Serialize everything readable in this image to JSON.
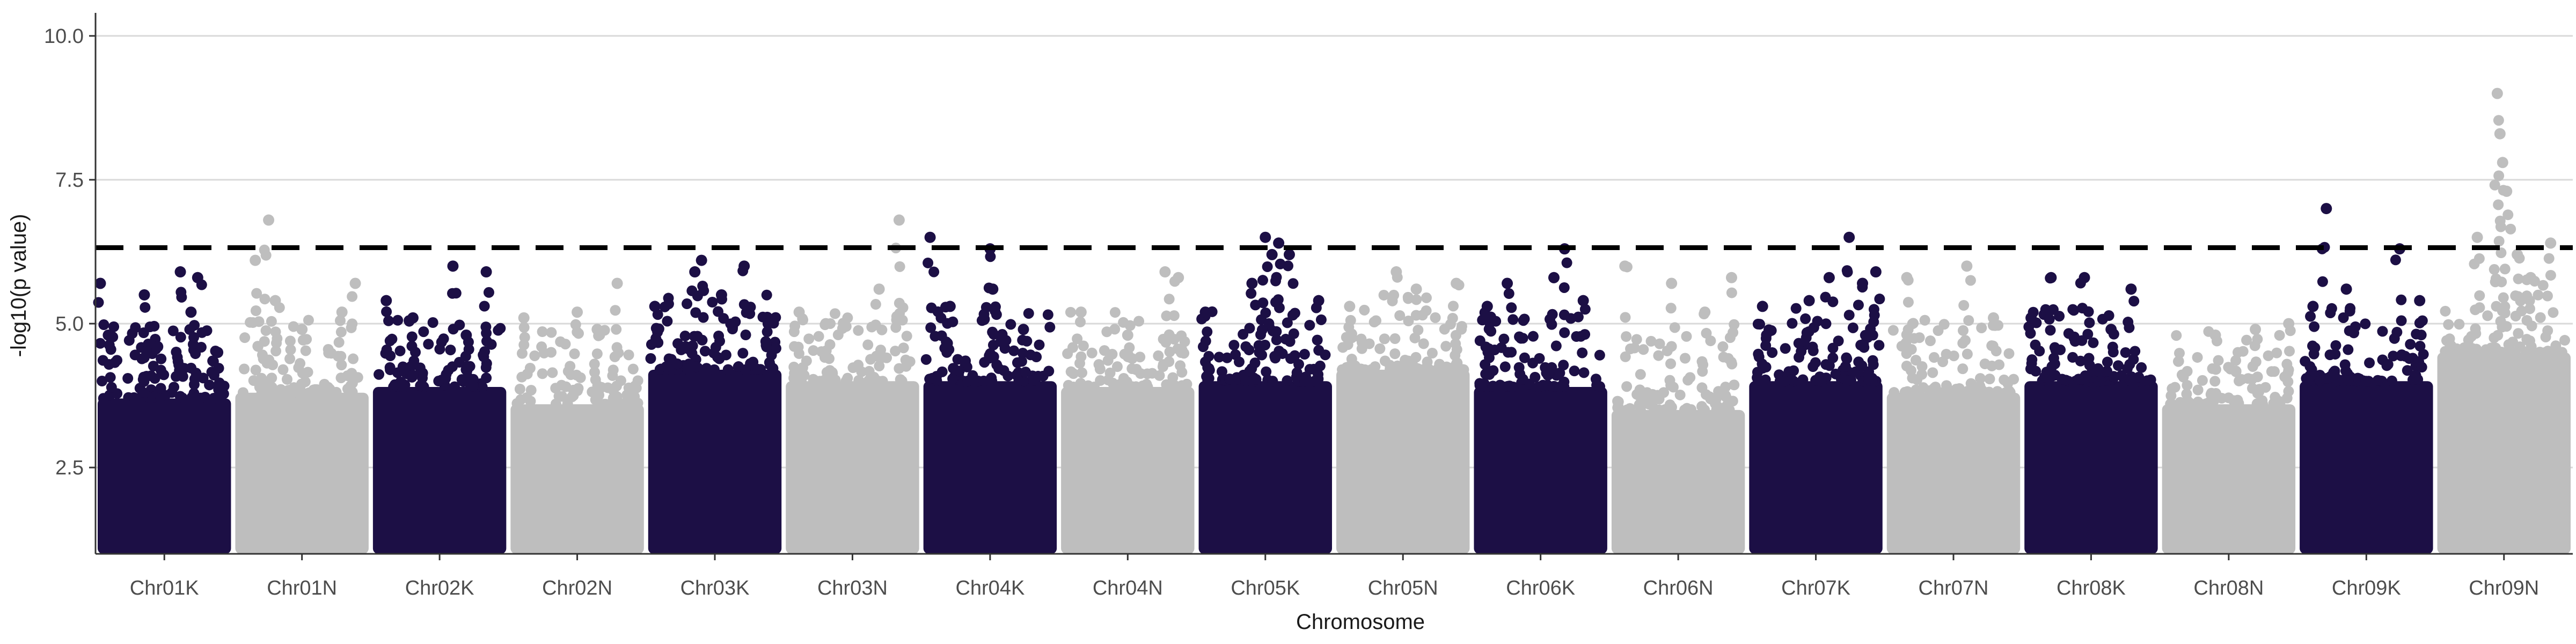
{
  "chart_data": {
    "type": "scatter",
    "subtype": "manhattan",
    "title": "",
    "xlabel": "Chromosome",
    "ylabel": "-log10(p value)",
    "ylim": [
      1.0,
      10.4
    ],
    "yticks": [
      2.5,
      5.0,
      7.5,
      10.0
    ],
    "ytick_labels": [
      "2.5",
      "5.0",
      "7.5",
      "10.0"
    ],
    "grid": "horizontal major only",
    "legend": "none",
    "threshold": {
      "value": 6.32,
      "style": "dashed",
      "color": "#000000"
    },
    "colors": {
      "dark": "#1c0f45",
      "light": "#bebebe",
      "grid": "#d9d9d9",
      "axis": "#333333"
    },
    "categories": [
      "Chr01K",
      "Chr01N",
      "Chr02K",
      "Chr02N",
      "Chr03K",
      "Chr03N",
      "Chr04K",
      "Chr04N",
      "Chr05K",
      "Chr05N",
      "Chr06K",
      "Chr06N",
      "Chr07K",
      "Chr07N",
      "Chr08K",
      "Chr08N",
      "Chr09K",
      "Chr09N"
    ],
    "series": [
      {
        "chromosome": "Chr01K",
        "color": "dark",
        "base_top": 3.7,
        "peak_points": [
          [
            0.02,
            5.7
          ],
          [
            0.08,
            4.8
          ],
          [
            0.35,
            5.5
          ],
          [
            0.45,
            4.6
          ],
          [
            0.62,
            5.9
          ],
          [
            0.7,
            5.2
          ],
          [
            0.75,
            5.8
          ],
          [
            0.9,
            4.5
          ]
        ]
      },
      {
        "chromosome": "Chr01N",
        "color": "light",
        "base_top": 3.8,
        "peak_points": [
          [
            0.15,
            6.1
          ],
          [
            0.25,
            6.8
          ],
          [
            0.3,
            5.4
          ],
          [
            0.5,
            4.9
          ],
          [
            0.8,
            5.2
          ],
          [
            0.9,
            5.7
          ]
        ]
      },
      {
        "chromosome": "Chr02K",
        "color": "dark",
        "base_top": 3.9,
        "peak_points": [
          [
            0.1,
            5.4
          ],
          [
            0.3,
            5.1
          ],
          [
            0.6,
            6.0
          ],
          [
            0.85,
            5.9
          ],
          [
            0.7,
            4.8
          ]
        ]
      },
      {
        "chromosome": "Chr02N",
        "color": "light",
        "base_top": 3.6,
        "peak_points": [
          [
            0.1,
            5.1
          ],
          [
            0.5,
            5.2
          ],
          [
            0.8,
            5.7
          ],
          [
            0.65,
            4.9
          ]
        ]
      },
      {
        "chromosome": "Chr03K",
        "color": "dark",
        "base_top": 4.2,
        "peak_points": [
          [
            0.05,
            5.3
          ],
          [
            0.35,
            5.9
          ],
          [
            0.4,
            6.1
          ],
          [
            0.55,
            5.5
          ],
          [
            0.72,
            6.0
          ],
          [
            0.9,
            5.0
          ]
        ]
      },
      {
        "chromosome": "Chr03N",
        "color": "light",
        "base_top": 4.0,
        "peak_points": [
          [
            0.1,
            5.2
          ],
          [
            0.3,
            5.0
          ],
          [
            0.7,
            5.6
          ],
          [
            0.85,
            6.8
          ]
        ]
      },
      {
        "chromosome": "Chr04K",
        "color": "dark",
        "base_top": 4.0,
        "peak_points": [
          [
            0.05,
            6.5
          ],
          [
            0.2,
            5.3
          ],
          [
            0.5,
            6.3
          ],
          [
            0.52,
            5.6
          ],
          [
            0.75,
            4.9
          ]
        ]
      },
      {
        "chromosome": "Chr04N",
        "color": "light",
        "base_top": 3.9,
        "peak_points": [
          [
            0.15,
            5.2
          ],
          [
            0.5,
            4.8
          ],
          [
            0.78,
            5.9
          ],
          [
            0.88,
            5.8
          ]
        ]
      },
      {
        "chromosome": "Chr05K",
        "color": "dark",
        "base_top": 4.0,
        "peak_points": [
          [
            0.05,
            5.2
          ],
          [
            0.4,
            5.7
          ],
          [
            0.5,
            6.5
          ],
          [
            0.55,
            6.2
          ],
          [
            0.6,
            6.4
          ],
          [
            0.68,
            6.2
          ],
          [
            0.9,
            5.4
          ]
        ]
      },
      {
        "chromosome": "Chr05N",
        "color": "light",
        "base_top": 4.2,
        "peak_points": [
          [
            0.1,
            5.3
          ],
          [
            0.45,
            5.9
          ],
          [
            0.6,
            5.6
          ],
          [
            0.9,
            5.7
          ]
        ]
      },
      {
        "chromosome": "Chr06K",
        "color": "dark",
        "base_top": 3.9,
        "peak_points": [
          [
            0.1,
            5.3
          ],
          [
            0.25,
            5.7
          ],
          [
            0.6,
            5.8
          ],
          [
            0.68,
            6.3
          ],
          [
            0.82,
            5.4
          ]
        ]
      },
      {
        "chromosome": "Chr06N",
        "color": "light",
        "base_top": 3.5,
        "peak_points": [
          [
            0.1,
            6.0
          ],
          [
            0.45,
            5.7
          ],
          [
            0.9,
            5.8
          ],
          [
            0.7,
            5.2
          ]
        ]
      },
      {
        "chromosome": "Chr07K",
        "color": "dark",
        "base_top": 4.0,
        "peak_points": [
          [
            0.1,
            5.3
          ],
          [
            0.45,
            5.4
          ],
          [
            0.6,
            5.8
          ],
          [
            0.75,
            6.5
          ],
          [
            0.85,
            5.7
          ],
          [
            0.95,
            5.9
          ]
        ]
      },
      {
        "chromosome": "Chr07N",
        "color": "light",
        "base_top": 3.8,
        "peak_points": [
          [
            0.15,
            5.8
          ],
          [
            0.6,
            6.0
          ],
          [
            0.8,
            5.1
          ]
        ]
      },
      {
        "chromosome": "Chr08K",
        "color": "dark",
        "base_top": 4.0,
        "peak_points": [
          [
            0.05,
            5.1
          ],
          [
            0.2,
            5.8
          ],
          [
            0.45,
            5.8
          ],
          [
            0.65,
            4.9
          ],
          [
            0.8,
            5.6
          ]
        ]
      },
      {
        "chromosome": "Chr08N",
        "color": "light",
        "base_top": 3.6,
        "peak_points": [
          [
            0.4,
            4.8
          ],
          [
            0.7,
            4.9
          ],
          [
            0.95,
            5.0
          ]
        ]
      },
      {
        "chromosome": "Chr09K",
        "color": "dark",
        "base_top": 4.0,
        "peak_points": [
          [
            0.1,
            5.3
          ],
          [
            0.2,
            7.0
          ],
          [
            0.35,
            5.6
          ],
          [
            0.75,
            6.3
          ],
          [
            0.9,
            5.4
          ]
        ]
      },
      {
        "chromosome": "Chr09N",
        "color": "light",
        "base_top": 4.5,
        "peak_points": [
          [
            0.3,
            6.5
          ],
          [
            0.45,
            9.0
          ],
          [
            0.47,
            8.3
          ],
          [
            0.49,
            7.8
          ],
          [
            0.52,
            7.3
          ],
          [
            0.6,
            6.2
          ],
          [
            0.7,
            5.8
          ],
          [
            0.85,
            6.4
          ]
        ]
      }
    ]
  }
}
